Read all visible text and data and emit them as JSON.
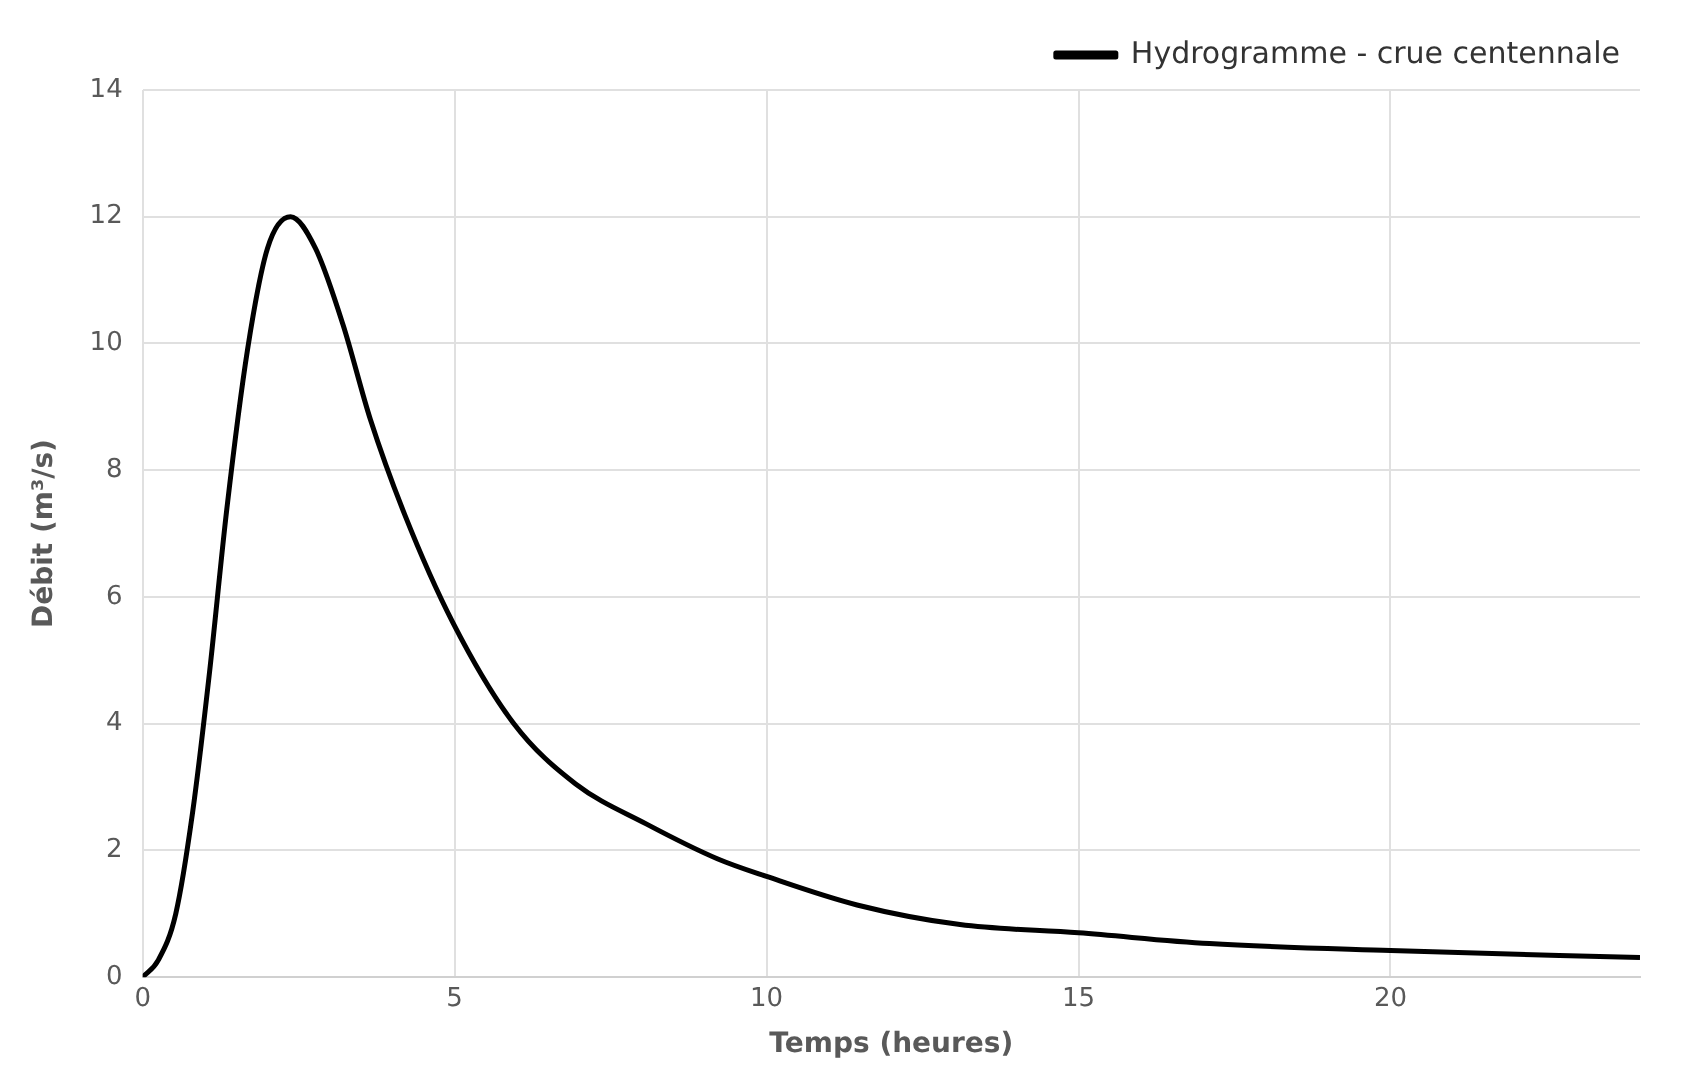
{
  "chart_data": {
    "type": "line",
    "xlabel": "Temps (heures)",
    "ylabel": "Débit (m³/s)",
    "x": [
      0,
      0.25,
      0.53,
      0.8,
      1.07,
      1.35,
      1.68,
      2,
      2.37,
      2.77,
      3.21,
      3.65,
      4.2,
      4.97,
      5.95,
      6.94,
      8.07,
      9.21,
      10,
      11.45,
      13.1,
      15,
      17.1,
      20,
      24
    ],
    "series": [
      {
        "name": "Hydrogramme - crue centennale",
        "color": "#000000",
        "values": [
          0,
          0.27,
          1,
          2.6,
          4.8,
          7.4,
          9.9,
          11.5,
          12,
          11.5,
          10.3,
          8.8,
          7.3,
          5.6,
          4,
          3.05,
          2.42,
          1.87,
          1.59,
          1.14,
          0.83,
          0.7,
          0.53,
          0.42,
          0.31
        ]
      }
    ],
    "xlim": [
      0,
      24
    ],
    "xticks": [
      0,
      5,
      10,
      15,
      20
    ],
    "ylim": [
      0,
      14
    ],
    "yticks": [
      0,
      2,
      4,
      6,
      8,
      10,
      12,
      14
    ],
    "grid": true,
    "legend": "top right",
    "marker": "none",
    "line_style": "solid"
  }
}
